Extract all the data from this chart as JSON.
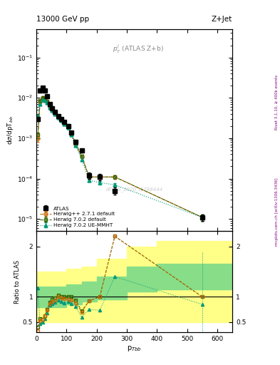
{
  "title_left": "13000 GeV pp",
  "title_right": "Z+Jet",
  "inner_label": "$p_T^j$ (ATLAS Z+b)",
  "watermark": "ATLAS_2020_I1788444",
  "right_label1": "Rivet 3.1.10, ≥ 400k events",
  "right_label2": "mcplots.cern.ch [arXiv:1306.3436]",
  "atlas_x": [
    5,
    12,
    20,
    28,
    36,
    44,
    52,
    62,
    72,
    82,
    92,
    105,
    115,
    130,
    150,
    175,
    210,
    260,
    550
  ],
  "atlas_y": [
    0.003,
    0.015,
    0.018,
    0.015,
    0.011,
    0.007,
    0.0055,
    0.0045,
    0.0035,
    0.003,
    0.0025,
    0.002,
    0.0014,
    0.0008,
    0.0005,
    0.00012,
    0.00011,
    5e-05,
    1.1e-05
  ],
  "atlas_yerr_lo": [
    0.0004,
    0.001,
    0.001,
    0.001,
    0.0008,
    0.0005,
    0.0004,
    0.0003,
    0.0003,
    0.0002,
    0.0002,
    0.0002,
    0.0001,
    8e-05,
    5e-05,
    2e-05,
    2e-05,
    1e-05,
    2e-06
  ],
  "atlas_yerr_hi": [
    0.0004,
    0.001,
    0.001,
    0.001,
    0.0008,
    0.0005,
    0.0004,
    0.0003,
    0.0003,
    0.0002,
    0.0002,
    0.0002,
    0.0001,
    8e-05,
    5e-05,
    2e-05,
    2e-05,
    1e-05,
    2e-06
  ],
  "hw271_x": [
    5,
    12,
    20,
    28,
    36,
    44,
    52,
    62,
    72,
    82,
    92,
    105,
    115,
    130,
    150,
    175,
    210,
    260,
    550
  ],
  "hw271_y": [
    0.001,
    0.008,
    0.01,
    0.0095,
    0.008,
    0.006,
    0.005,
    0.0042,
    0.0035,
    0.0029,
    0.0024,
    0.0019,
    0.0013,
    0.0007,
    0.00035,
    0.00011,
    0.00011,
    0.00011,
    1.1e-05
  ],
  "hw271_yerr": [
    0.0002,
    0.0005,
    0.0005,
    0.0004,
    0.0004,
    0.0003,
    0.0003,
    0.0002,
    0.0002,
    0.0002,
    0.0001,
    0.0001,
    0.0001,
    5e-05,
    3e-05,
    1e-05,
    1e-05,
    1e-05,
    2e-06
  ],
  "hw702_x": [
    5,
    12,
    20,
    28,
    36,
    44,
    52,
    62,
    72,
    82,
    92,
    105,
    115,
    130,
    150,
    175,
    210,
    260,
    550
  ],
  "hw702_y": [
    0.0012,
    0.0085,
    0.01,
    0.0095,
    0.0082,
    0.0062,
    0.0052,
    0.0044,
    0.0036,
    0.003,
    0.0025,
    0.002,
    0.0014,
    0.00075,
    0.00036,
    0.00011,
    0.00011,
    0.00011,
    1.1e-05
  ],
  "hw702_yerr": [
    0.0002,
    0.0005,
    0.0005,
    0.0004,
    0.0004,
    0.0003,
    0.0003,
    0.0002,
    0.0002,
    0.0002,
    0.0001,
    0.0001,
    0.0001,
    5e-05,
    3e-05,
    1e-05,
    1e-05,
    1e-05,
    2e-06
  ],
  "hwue_x": [
    5,
    12,
    20,
    28,
    36,
    44,
    52,
    62,
    72,
    82,
    92,
    105,
    115,
    130,
    150,
    175,
    210,
    260,
    550
  ],
  "hwue_y": [
    0.0035,
    0.007,
    0.009,
    0.0085,
    0.0075,
    0.0058,
    0.0048,
    0.004,
    0.0033,
    0.0027,
    0.0022,
    0.0018,
    0.0012,
    0.00065,
    0.0003,
    9e-05,
    8e-05,
    7e-05,
    1.1e-05
  ],
  "hwue_yerr": [
    0.0003,
    0.0004,
    0.0004,
    0.0004,
    0.0003,
    0.0003,
    0.0002,
    0.0002,
    0.0002,
    0.0001,
    0.0001,
    0.0001,
    8e-05,
    5e-05,
    2e-05,
    8e-06,
    8e-06,
    8e-06,
    2e-06
  ],
  "atlas_color": "#000000",
  "hw271_color": "#cc6600",
  "hw702_color": "#336600",
  "hwue_color": "#009977",
  "ratio_hw271_y": [
    0.33,
    0.53,
    0.56,
    0.63,
    0.73,
    0.86,
    0.91,
    0.93,
    1.0,
    0.97,
    0.96,
    0.95,
    0.93,
    0.88,
    0.7,
    0.92,
    1.0,
    2.2,
    1.0
  ],
  "ratio_hw702_y": [
    0.4,
    0.57,
    0.56,
    0.63,
    0.75,
    0.89,
    0.95,
    0.98,
    1.03,
    1.0,
    1.0,
    1.0,
    1.0,
    0.94,
    0.72,
    0.92,
    1.0,
    2.2,
    1.0
  ],
  "ratio_hwue_y": [
    1.17,
    0.47,
    0.5,
    0.57,
    0.68,
    0.83,
    0.87,
    0.89,
    0.94,
    0.9,
    0.88,
    0.9,
    0.86,
    0.81,
    0.6,
    0.75,
    0.73,
    1.4,
    0.85
  ],
  "band_edges": [
    0,
    50,
    100,
    150,
    200,
    300,
    400,
    700
  ],
  "band_yellow_lo": [
    0.5,
    0.5,
    0.5,
    0.5,
    0.5,
    0.5,
    0.5,
    0.5
  ],
  "band_yellow_hi": [
    1.5,
    1.5,
    1.55,
    1.6,
    1.75,
    2.0,
    2.1,
    2.1
  ],
  "band_green_lo": [
    0.8,
    0.8,
    0.85,
    0.9,
    0.95,
    1.1,
    1.15,
    1.15
  ],
  "band_green_hi": [
    1.2,
    1.2,
    1.25,
    1.3,
    1.4,
    1.6,
    1.65,
    1.65
  ],
  "xlim": [
    0,
    650
  ],
  "ylim_main": [
    5e-06,
    0.5
  ],
  "ylim_ratio": [
    0.3,
    2.3
  ],
  "ratio_yticks": [
    0.5,
    1.0,
    2.0
  ],
  "ratio_yticklabels": [
    "0.5",
    "1",
    "2"
  ]
}
